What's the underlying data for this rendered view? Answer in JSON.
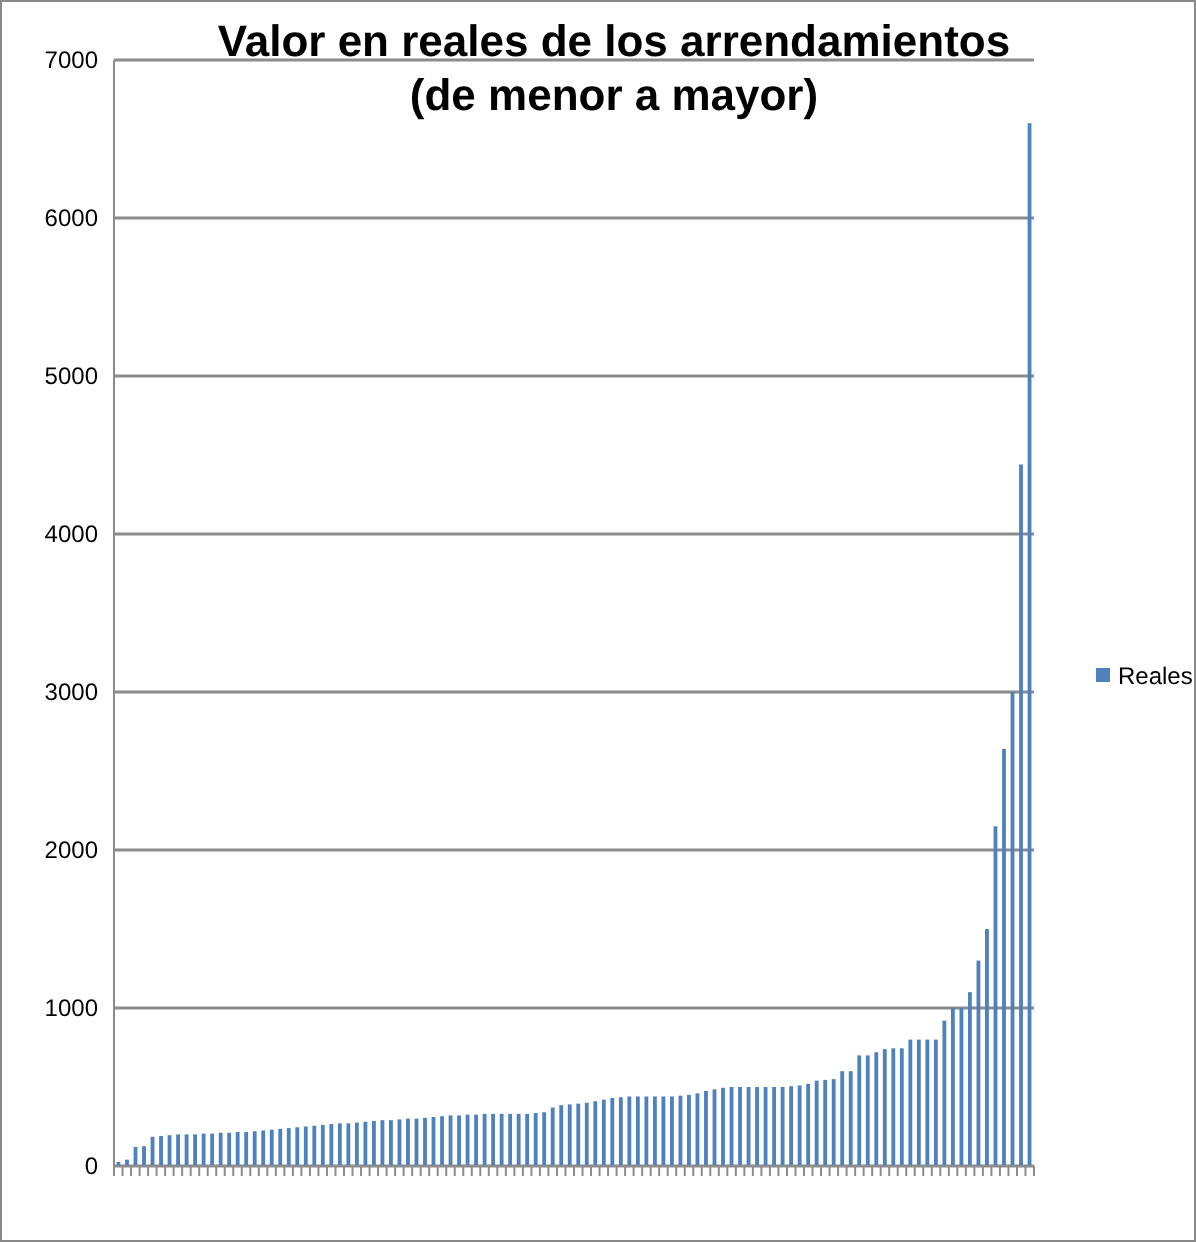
{
  "chart_data": {
    "type": "bar",
    "title": "Valor en reales de los arrendamientos\n(de menor a mayor)",
    "categories": [
      null,
      null,
      null,
      null,
      null,
      null,
      null,
      null,
      null,
      null,
      null,
      null,
      null,
      null,
      null,
      null,
      null,
      null,
      null,
      null,
      null,
      null,
      null,
      null,
      null,
      null,
      null,
      null,
      null,
      null,
      null,
      null,
      null,
      null,
      null,
      null,
      null,
      null,
      null,
      null,
      null,
      null,
      null,
      null,
      null,
      null,
      null,
      null,
      null,
      null,
      null,
      null,
      null,
      null,
      null,
      null,
      null,
      null,
      null,
      null,
      null,
      null,
      null,
      null,
      null,
      null,
      null,
      null,
      null,
      null,
      null,
      null,
      null,
      null,
      null,
      null,
      null,
      null,
      null,
      null,
      null,
      null,
      null,
      null,
      null,
      null,
      null,
      null,
      null,
      null,
      null,
      null,
      null,
      null,
      null,
      null,
      null,
      null,
      null,
      null,
      null,
      null,
      null,
      null,
      null,
      null,
      null,
      null
    ],
    "series": [
      {
        "name": "Reales",
        "color": "#4f81bd",
        "values": [
          25,
          40,
          120,
          125,
          185,
          190,
          195,
          200,
          200,
          200,
          205,
          205,
          210,
          210,
          215,
          215,
          220,
          225,
          230,
          235,
          240,
          245,
          250,
          255,
          260,
          265,
          270,
          270,
          275,
          280,
          285,
          290,
          290,
          295,
          300,
          300,
          305,
          310,
          315,
          320,
          320,
          325,
          325,
          330,
          330,
          330,
          330,
          330,
          330,
          335,
          340,
          370,
          385,
          390,
          395,
          400,
          410,
          420,
          430,
          435,
          440,
          440,
          440,
          440,
          440,
          440,
          445,
          450,
          460,
          475,
          485,
          495,
          500,
          500,
          500,
          500,
          500,
          500,
          500,
          505,
          510,
          520,
          540,
          545,
          550,
          600,
          600,
          700,
          700,
          720,
          740,
          745,
          745,
          800,
          800,
          800,
          800,
          920,
          1000,
          1000,
          1100,
          1300,
          1500,
          2150,
          2640,
          3000,
          4440,
          6600
        ]
      }
    ],
    "ylim": [
      0,
      7000
    ],
    "yticks": [
      0,
      1000,
      2000,
      3000,
      4000,
      5000,
      6000,
      7000
    ],
    "grid": "y",
    "legend": "right"
  }
}
